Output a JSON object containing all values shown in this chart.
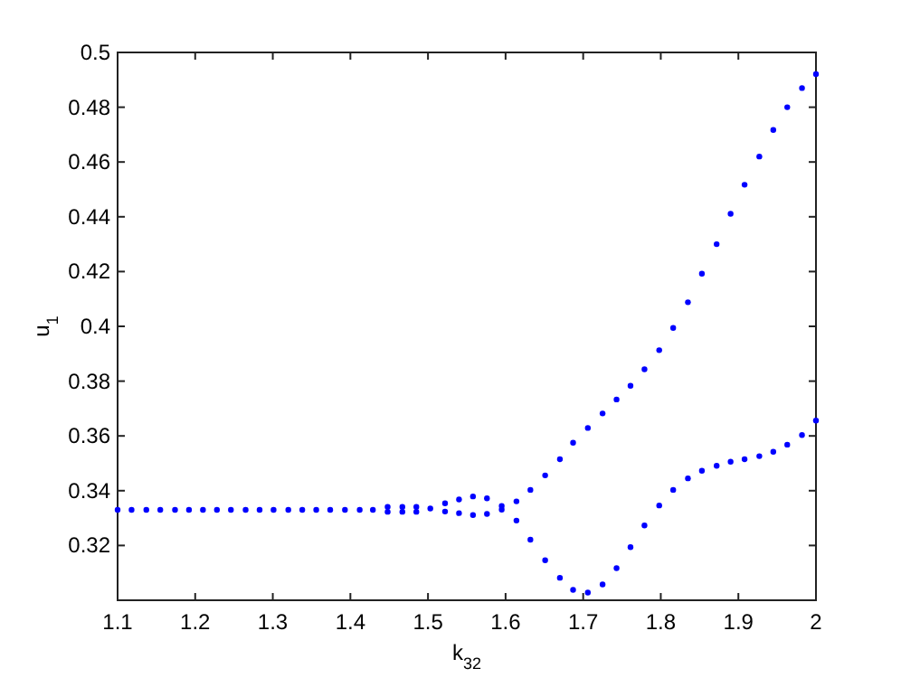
{
  "chart_data": {
    "type": "scatter",
    "xlabel": "k$_{32}$",
    "ylabel": "u$_{1}$",
    "xlim": [
      1.1,
      2
    ],
    "ylim": [
      0.3,
      0.5
    ],
    "xticks": [
      1.1,
      1.2,
      1.3,
      1.4,
      1.5,
      1.6,
      1.7,
      1.8,
      1.9,
      2
    ],
    "yticks": [
      0.32,
      0.34,
      0.36,
      0.38,
      0.4,
      0.42,
      0.44,
      0.46,
      0.48,
      0.5
    ],
    "marker": "circle",
    "grid": false,
    "series": [
      {
        "color": "#0000ff",
        "x": [
          1.1,
          1.118,
          1.137,
          1.155,
          1.174,
          1.192,
          1.21,
          1.228,
          1.246,
          1.265,
          1.283,
          1.301,
          1.32,
          1.338,
          1.356,
          1.374,
          1.393,
          1.412,
          1.429,
          1.448,
          1.467,
          1.485,
          1.503,
          1.522,
          1.54,
          1.558,
          1.576,
          1.595,
          1.614,
          1.632,
          1.651,
          1.67,
          1.687,
          1.706,
          1.725,
          1.743,
          1.761,
          1.779,
          1.798,
          1.816,
          1.835,
          1.853,
          1.872,
          1.89,
          1.908,
          1.927,
          1.945,
          1.963,
          1.982,
          2.0
        ],
        "values": [
          0.333,
          0.333,
          0.333,
          0.333,
          0.333,
          0.333,
          0.333,
          0.333,
          0.333,
          0.333,
          0.333,
          0.333,
          0.333,
          0.333,
          0.333,
          0.333,
          0.333,
          0.333,
          0.333,
          0.3341,
          0.3341,
          0.3341,
          0.3335,
          0.3354,
          0.3368,
          0.3379,
          0.3372,
          0.3344,
          0.3361,
          0.3403,
          0.3456,
          0.3515,
          0.3575,
          0.3629,
          0.3682,
          0.3733,
          0.3783,
          0.3843,
          0.3913,
          0.3994,
          0.4088,
          0.4192,
          0.43,
          0.4411,
          0.4517,
          0.462,
          0.4717,
          0.48,
          0.487,
          0.4921
        ]
      },
      {
        "color": "#0000ff",
        "x": [
          1.448,
          1.467,
          1.485,
          1.522,
          1.54,
          1.558,
          1.576,
          1.595,
          1.614,
          1.632,
          1.651,
          1.67,
          1.687,
          1.706,
          1.725,
          1.743,
          1.761,
          1.779,
          1.798,
          1.816,
          1.835,
          1.853,
          1.872,
          1.89,
          1.908,
          1.927,
          1.945,
          1.963,
          1.982,
          2.0
        ],
        "values": [
          0.3323,
          0.3323,
          0.3323,
          0.3324,
          0.3318,
          0.3311,
          0.3315,
          0.3331,
          0.3291,
          0.3221,
          0.3146,
          0.3082,
          0.3038,
          0.3028,
          0.3058,
          0.3117,
          0.3194,
          0.3273,
          0.3346,
          0.3403,
          0.3445,
          0.3473,
          0.3491,
          0.3506,
          0.3515,
          0.3526,
          0.3542,
          0.3568,
          0.3603,
          0.3656
        ]
      }
    ]
  }
}
